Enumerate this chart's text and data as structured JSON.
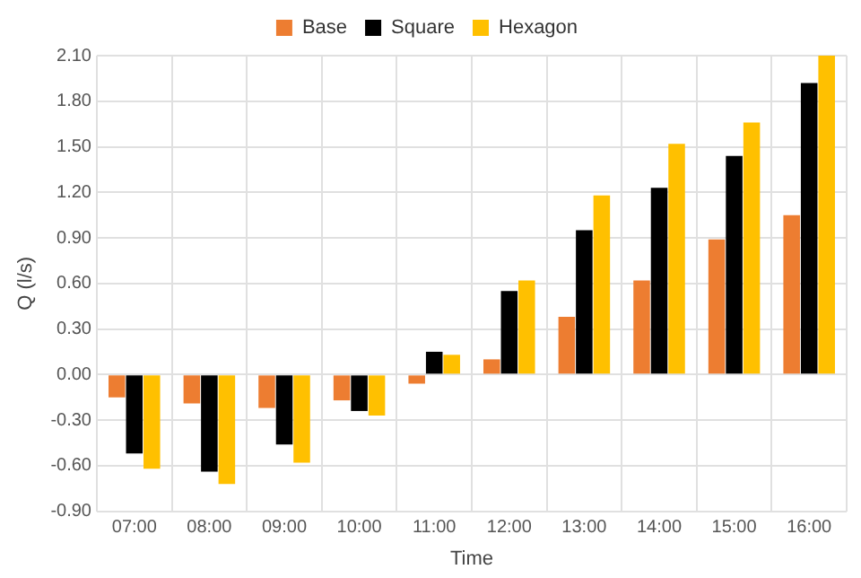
{
  "chart_data": {
    "type": "bar",
    "xlabel": "Time",
    "ylabel": "Q (l/s)",
    "categories": [
      "07:00",
      "08:00",
      "09:00",
      "10:00",
      "11:00",
      "12:00",
      "13:00",
      "14:00",
      "15:00",
      "16:00"
    ],
    "series": [
      {
        "name": "Base",
        "color": "#ed7d31",
        "values": [
          -0.15,
          -0.19,
          -0.22,
          -0.17,
          -0.06,
          0.1,
          0.38,
          0.62,
          0.89,
          1.05
        ]
      },
      {
        "name": "Square",
        "color": "#000000",
        "values": [
          -0.52,
          -0.64,
          -0.46,
          -0.24,
          0.15,
          0.55,
          0.95,
          1.23,
          1.44,
          1.92
        ]
      },
      {
        "name": "Hexagon",
        "color": "#ffc000",
        "values": [
          -0.62,
          -0.72,
          -0.58,
          -0.27,
          0.13,
          0.62,
          1.18,
          1.52,
          1.66,
          2.1
        ]
      }
    ],
    "ylim": [
      -0.9,
      2.1
    ],
    "yticks": [
      {
        "value": -0.9,
        "label": "-0.90"
      },
      {
        "value": -0.6,
        "label": "-0.60"
      },
      {
        "value": -0.3,
        "label": "-0.30"
      },
      {
        "value": 0,
        "label": "0.00"
      },
      {
        "value": 0.3,
        "label": "0.30"
      },
      {
        "value": 0.6,
        "label": "0.60"
      },
      {
        "value": 0.9,
        "label": "0.90"
      },
      {
        "value": 1.2,
        "label": "1.20"
      },
      {
        "value": 1.5,
        "label": "1.50"
      },
      {
        "value": 1.8,
        "label": "1.80"
      },
      {
        "value": 2.1,
        "label": "2.10"
      }
    ],
    "grid": true,
    "legend": "top"
  }
}
